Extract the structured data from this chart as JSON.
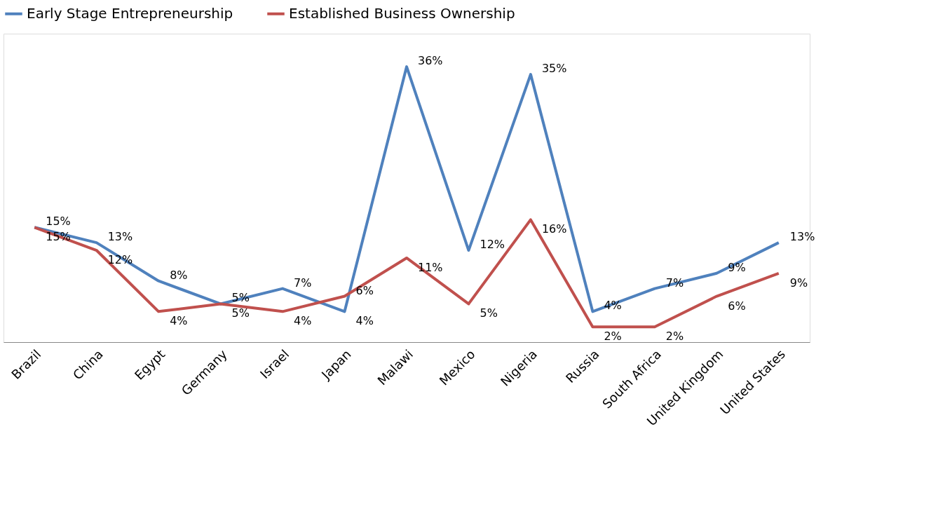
{
  "chart_data": {
    "type": "line",
    "categories": [
      "Brazil",
      "China",
      "Egypt",
      "Germany",
      "Israel",
      "Japan",
      "Malawi",
      "Mexico",
      "Nigeria",
      "Russia",
      "South Africa",
      "United Kingdom",
      "United States"
    ],
    "series": [
      {
        "name": "Early Stage Entrepreneurship",
        "color": "#4f81bd",
        "values": [
          15,
          13,
          8,
          5,
          7,
          4,
          36,
          12,
          35,
          4,
          7,
          9,
          13
        ],
        "value_labels": [
          "15%",
          "13%",
          "8%",
          "5%",
          "7%",
          "4%",
          "36%",
          "12%",
          "35%",
          "4%",
          "7%",
          "9%",
          "13%"
        ]
      },
      {
        "name": "Established Business Ownership",
        "color": "#c0504d",
        "values": [
          15,
          12,
          4,
          5,
          4,
          6,
          11,
          5,
          16,
          2,
          2,
          6,
          9
        ],
        "value_labels": [
          "15%",
          "12%",
          "4%",
          "5%",
          "4%",
          "6%",
          "11%",
          "5%",
          "16%",
          "2%",
          "2%",
          "6%",
          "9%"
        ]
      }
    ],
    "legend": "top",
    "tick_labels": "x",
    "grid": false,
    "marker": "none",
    "line_style": "solid"
  }
}
